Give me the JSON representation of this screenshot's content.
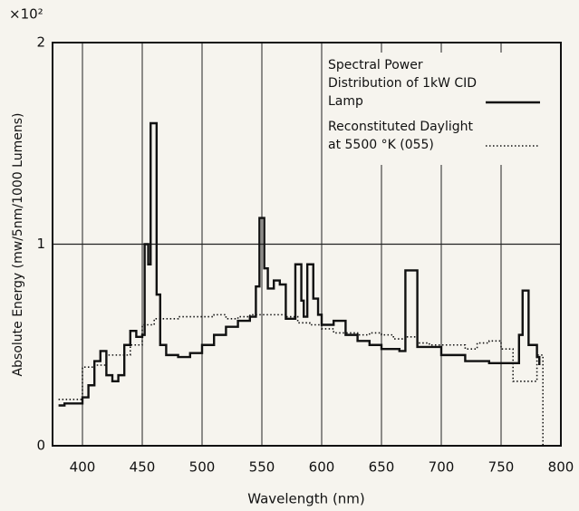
{
  "chart_data": {
    "type": "line",
    "multiplier": "×10²",
    "xlabel": "Wavelength (nm)",
    "ylabel": "Absolute Energy (mw/5nm/1000 Lumens)",
    "xlim": [
      375,
      800
    ],
    "ylim": [
      0,
      2
    ],
    "xticks": [
      400,
      450,
      500,
      550,
      600,
      650,
      700,
      750,
      800
    ],
    "yticks": [
      0,
      1,
      2
    ],
    "grid": true,
    "step": true,
    "legend": "upper right",
    "series": [
      {
        "name": "Spectral Power Distribution of 1kW CID Lamp",
        "color": "#111111",
        "style": "solid",
        "x": [
          380,
          385,
          395,
          400,
          405,
          410,
          415,
          420,
          425,
          430,
          435,
          440,
          445,
          450,
          452,
          455,
          457,
          462,
          465,
          470,
          480,
          490,
          500,
          510,
          520,
          530,
          540,
          545,
          548,
          552,
          555,
          560,
          565,
          570,
          575,
          578,
          583,
          585,
          588,
          593,
          597,
          600,
          605,
          610,
          615,
          620,
          630,
          640,
          650,
          665,
          670,
          680,
          700,
          720,
          740,
          760,
          765,
          768,
          773,
          780,
          782
        ],
        "values": [
          0.2,
          0.21,
          0.21,
          0.24,
          0.3,
          0.42,
          0.47,
          0.35,
          0.32,
          0.35,
          0.5,
          0.57,
          0.54,
          0.55,
          1.0,
          0.9,
          1.6,
          0.75,
          0.5,
          0.45,
          0.44,
          0.46,
          0.5,
          0.55,
          0.59,
          0.62,
          0.64,
          0.79,
          1.13,
          0.88,
          0.78,
          0.82,
          0.8,
          0.63,
          0.63,
          0.9,
          0.72,
          0.64,
          0.9,
          0.73,
          0.65,
          0.6,
          0.6,
          0.62,
          0.62,
          0.55,
          0.52,
          0.5,
          0.48,
          0.47,
          0.87,
          0.49,
          0.45,
          0.42,
          0.41,
          0.41,
          0.55,
          0.77,
          0.5,
          0.44,
          0.4
        ]
      },
      {
        "name": "Reconstituted Daylight at 5500 °K (055)",
        "color": "#111111",
        "style": "dotted",
        "x": [
          380,
          390,
          400,
          410,
          420,
          430,
          440,
          450,
          460,
          470,
          480,
          490,
          500,
          510,
          520,
          530,
          540,
          550,
          560,
          570,
          580,
          590,
          600,
          610,
          620,
          630,
          640,
          650,
          660,
          670,
          680,
          690,
          700,
          710,
          720,
          730,
          740,
          750,
          760,
          770,
          780,
          785
        ],
        "values": [
          0.23,
          0.23,
          0.39,
          0.4,
          0.45,
          0.45,
          0.5,
          0.6,
          0.63,
          0.63,
          0.64,
          0.64,
          0.64,
          0.65,
          0.63,
          0.64,
          0.65,
          0.65,
          0.65,
          0.64,
          0.61,
          0.6,
          0.58,
          0.56,
          0.56,
          0.55,
          0.56,
          0.55,
          0.53,
          0.54,
          0.51,
          0.5,
          0.5,
          0.5,
          0.48,
          0.51,
          0.52,
          0.48,
          0.32,
          0.32,
          0.45,
          0
        ]
      }
    ]
  }
}
